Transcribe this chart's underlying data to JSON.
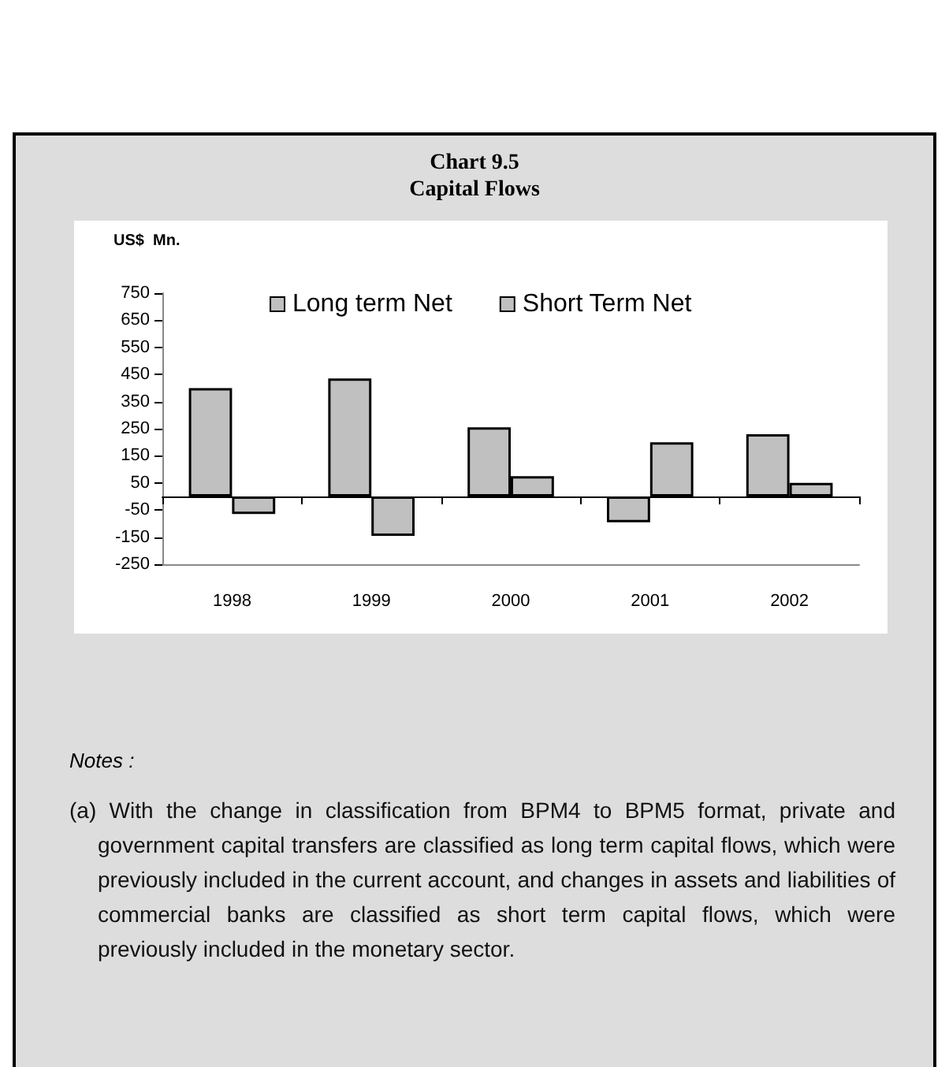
{
  "chart_data": {
    "type": "bar",
    "title": "Chart  9.5",
    "subtitle": "Capital Flows",
    "ylabel": "US$  Mn.",
    "categories": [
      "1998",
      "1999",
      "2000",
      "2001",
      "2002"
    ],
    "series": [
      {
        "name": "Long term Net",
        "color": "#c0c0c0",
        "values": [
          400,
          435,
          255,
          -95,
          230
        ]
      },
      {
        "name": "Short Term Net",
        "color": "#c0c0c0",
        "values": [
          -65,
          -145,
          75,
          200,
          50
        ]
      }
    ],
    "ylim": [
      -250,
      750
    ],
    "yticks": [
      -250,
      -150,
      -50,
      50,
      150,
      250,
      350,
      450,
      550,
      650,
      750
    ],
    "grid": false,
    "legend": "top",
    "annotations": [
      "Notes :",
      "(a) With the change in classification from BPM4 to BPM5 format, private and government capital transfers are classified as long term capital flows, which were previously included in the current account, and changes in assets and liabilities of commercial banks are classified as short term capital flows, which were previously included in the monetary sector."
    ]
  }
}
